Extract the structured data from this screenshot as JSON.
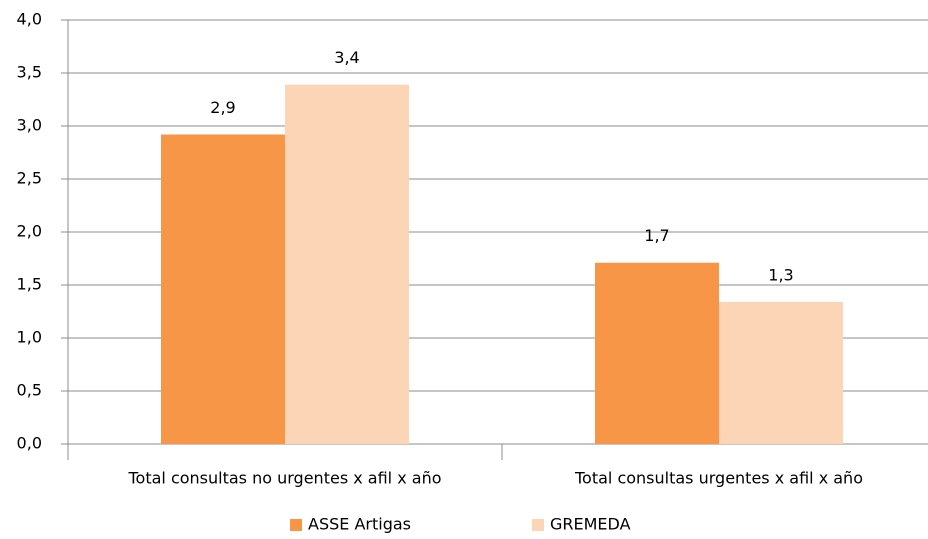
{
  "chart_data": {
    "type": "bar",
    "categories": [
      "Total consultas no urgentes x afil x año",
      "Total consultas urgentes x afil x año"
    ],
    "series": [
      {
        "name": "ASSE Artigas",
        "color": "#f79646",
        "values": [
          2.92,
          1.71
        ],
        "value_labels": [
          "2,9",
          "1,7"
        ]
      },
      {
        "name": "GREMEDA",
        "color": "#fbd5b5",
        "values": [
          3.39,
          1.34
        ],
        "value_labels": [
          "3,4",
          "1,3"
        ]
      }
    ],
    "ylim": [
      0,
      4
    ],
    "yticks": [
      {
        "value": 0,
        "label": "0,0"
      },
      {
        "value": 0.5,
        "label": "0,5"
      },
      {
        "value": 1,
        "label": "1,0"
      },
      {
        "value": 1.5,
        "label": "1,5"
      },
      {
        "value": 2,
        "label": "2,0"
      },
      {
        "value": 2.5,
        "label": "2,5"
      },
      {
        "value": 3,
        "label": "3,0"
      },
      {
        "value": 3.5,
        "label": "3,5"
      },
      {
        "value": 4,
        "label": "4,0"
      }
    ],
    "grid": true,
    "legend": "bottom"
  }
}
